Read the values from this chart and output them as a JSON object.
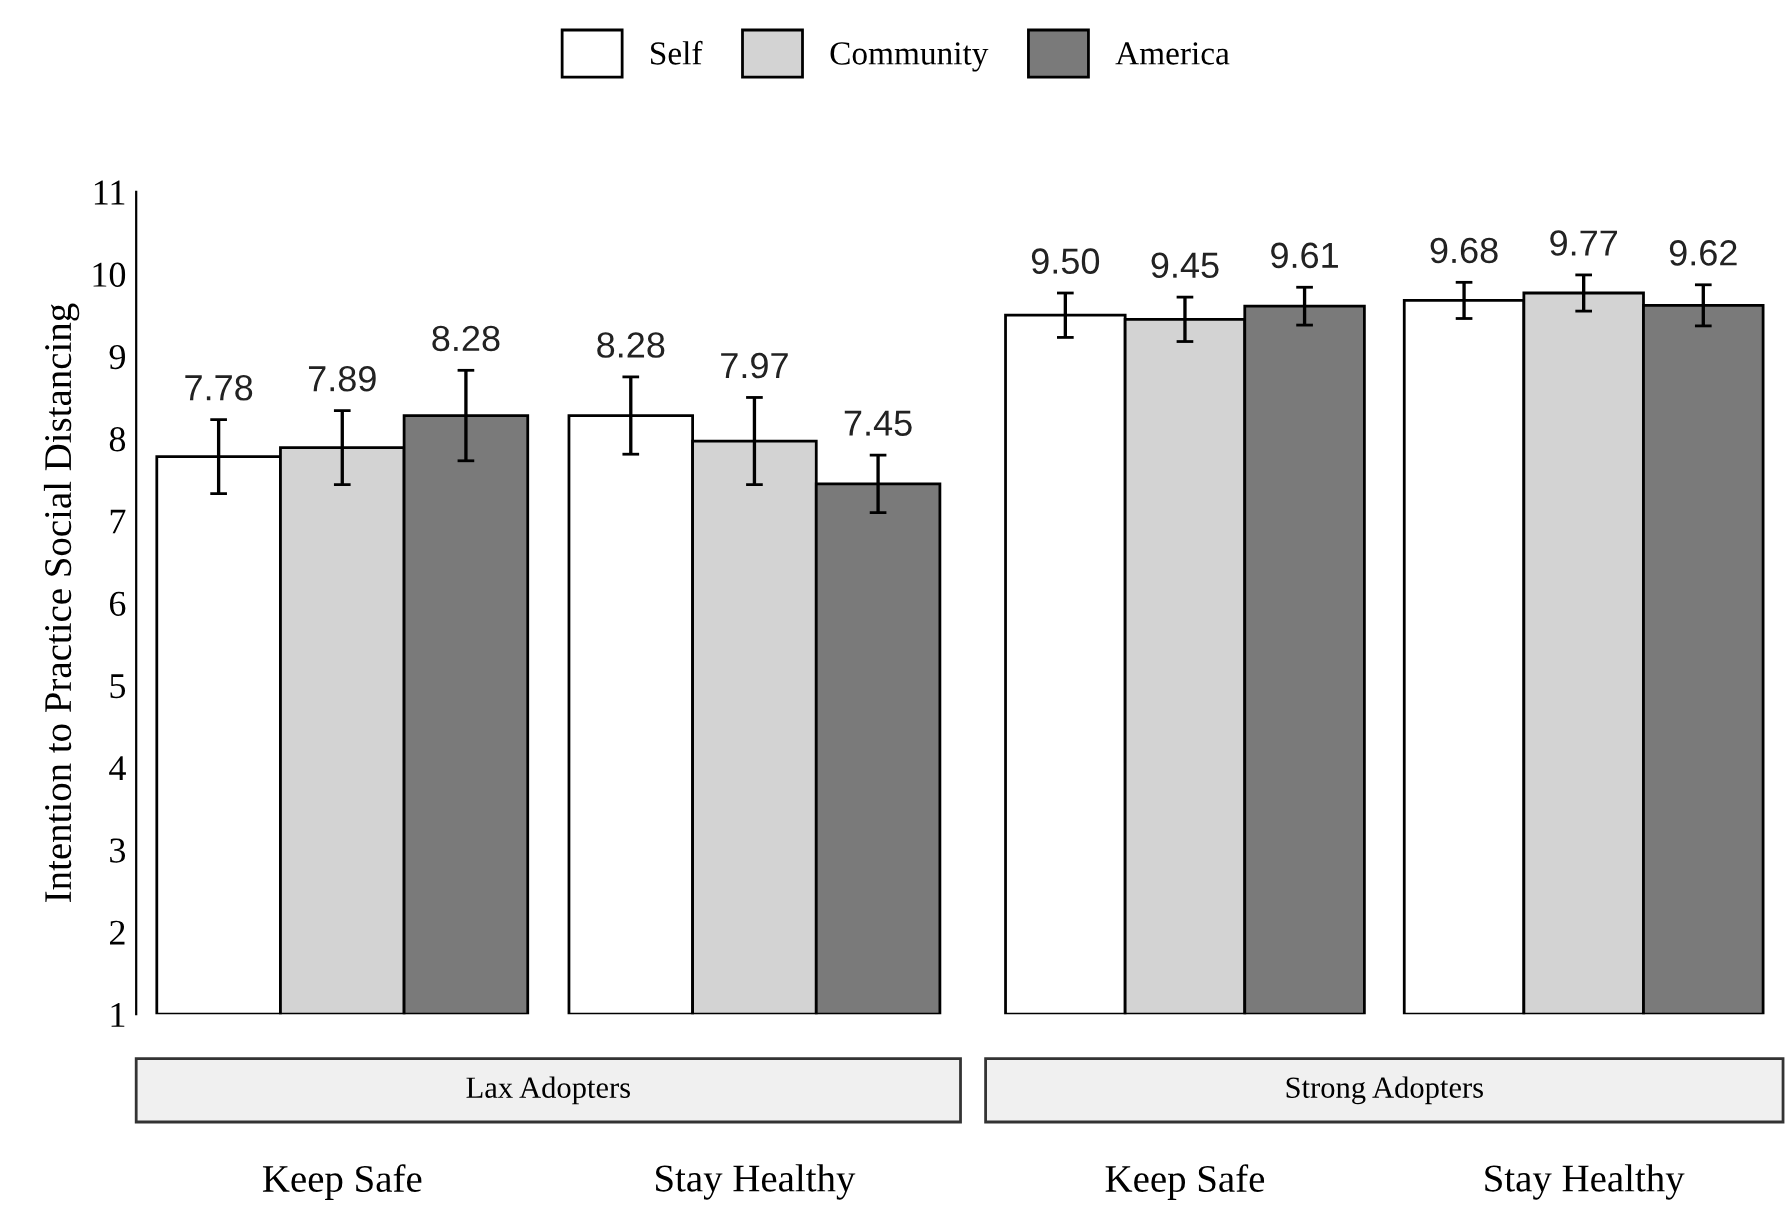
{
  "chart_data": [
    {
      "type": "bar",
      "title": "Lax Adopters",
      "ylabel": "Intention to Practice Social Distancing",
      "categories": [
        "Keep Safe",
        "Stay Healthy"
      ],
      "ylim": [
        1,
        11
      ],
      "yticks": [
        1,
        2,
        3,
        4,
        5,
        6,
        7,
        8,
        9,
        10,
        11
      ],
      "legend": "top",
      "grid": false,
      "series": [
        {
          "name": "Self",
          "color": "#ffffff",
          "values": [
            7.78,
            8.28
          ],
          "errors": [
            0.45,
            0.47
          ],
          "value_labels": [
            "7.78",
            "8.28"
          ]
        },
        {
          "name": "Community",
          "color": "#d3d3d3",
          "values": [
            7.89,
            7.97
          ],
          "errors": [
            0.45,
            0.53
          ],
          "value_labels": [
            "7.89",
            "7.97"
          ]
        },
        {
          "name": "America",
          "color": "#7a7a7a",
          "values": [
            8.28,
            7.45
          ],
          "errors": [
            0.55,
            0.35
          ],
          "value_labels": [
            "8.28",
            "7.45"
          ]
        }
      ]
    },
    {
      "type": "bar",
      "title": "Strong Adopters",
      "categories": [
        "Keep Safe",
        "Stay Healthy"
      ],
      "ylim": [
        1,
        11
      ],
      "tick_labels": "x",
      "grid": false,
      "series": [
        {
          "color": "#ffffff",
          "values": [
            9.5,
            9.68
          ],
          "errors": [
            0.27,
            0.22
          ],
          "value_labels": [
            "9.50",
            "9.68"
          ]
        },
        {
          "color": "#d3d3d3",
          "values": [
            9.45,
            9.77
          ],
          "errors": [
            0.27,
            0.22
          ],
          "value_labels": [
            "9.45",
            "9.77"
          ]
        },
        {
          "color": "#7a7a7a",
          "values": [
            9.61,
            9.62
          ],
          "errors": [
            0.23,
            0.25
          ],
          "value_labels": [
            "9.61",
            "9.62"
          ]
        }
      ]
    }
  ]
}
